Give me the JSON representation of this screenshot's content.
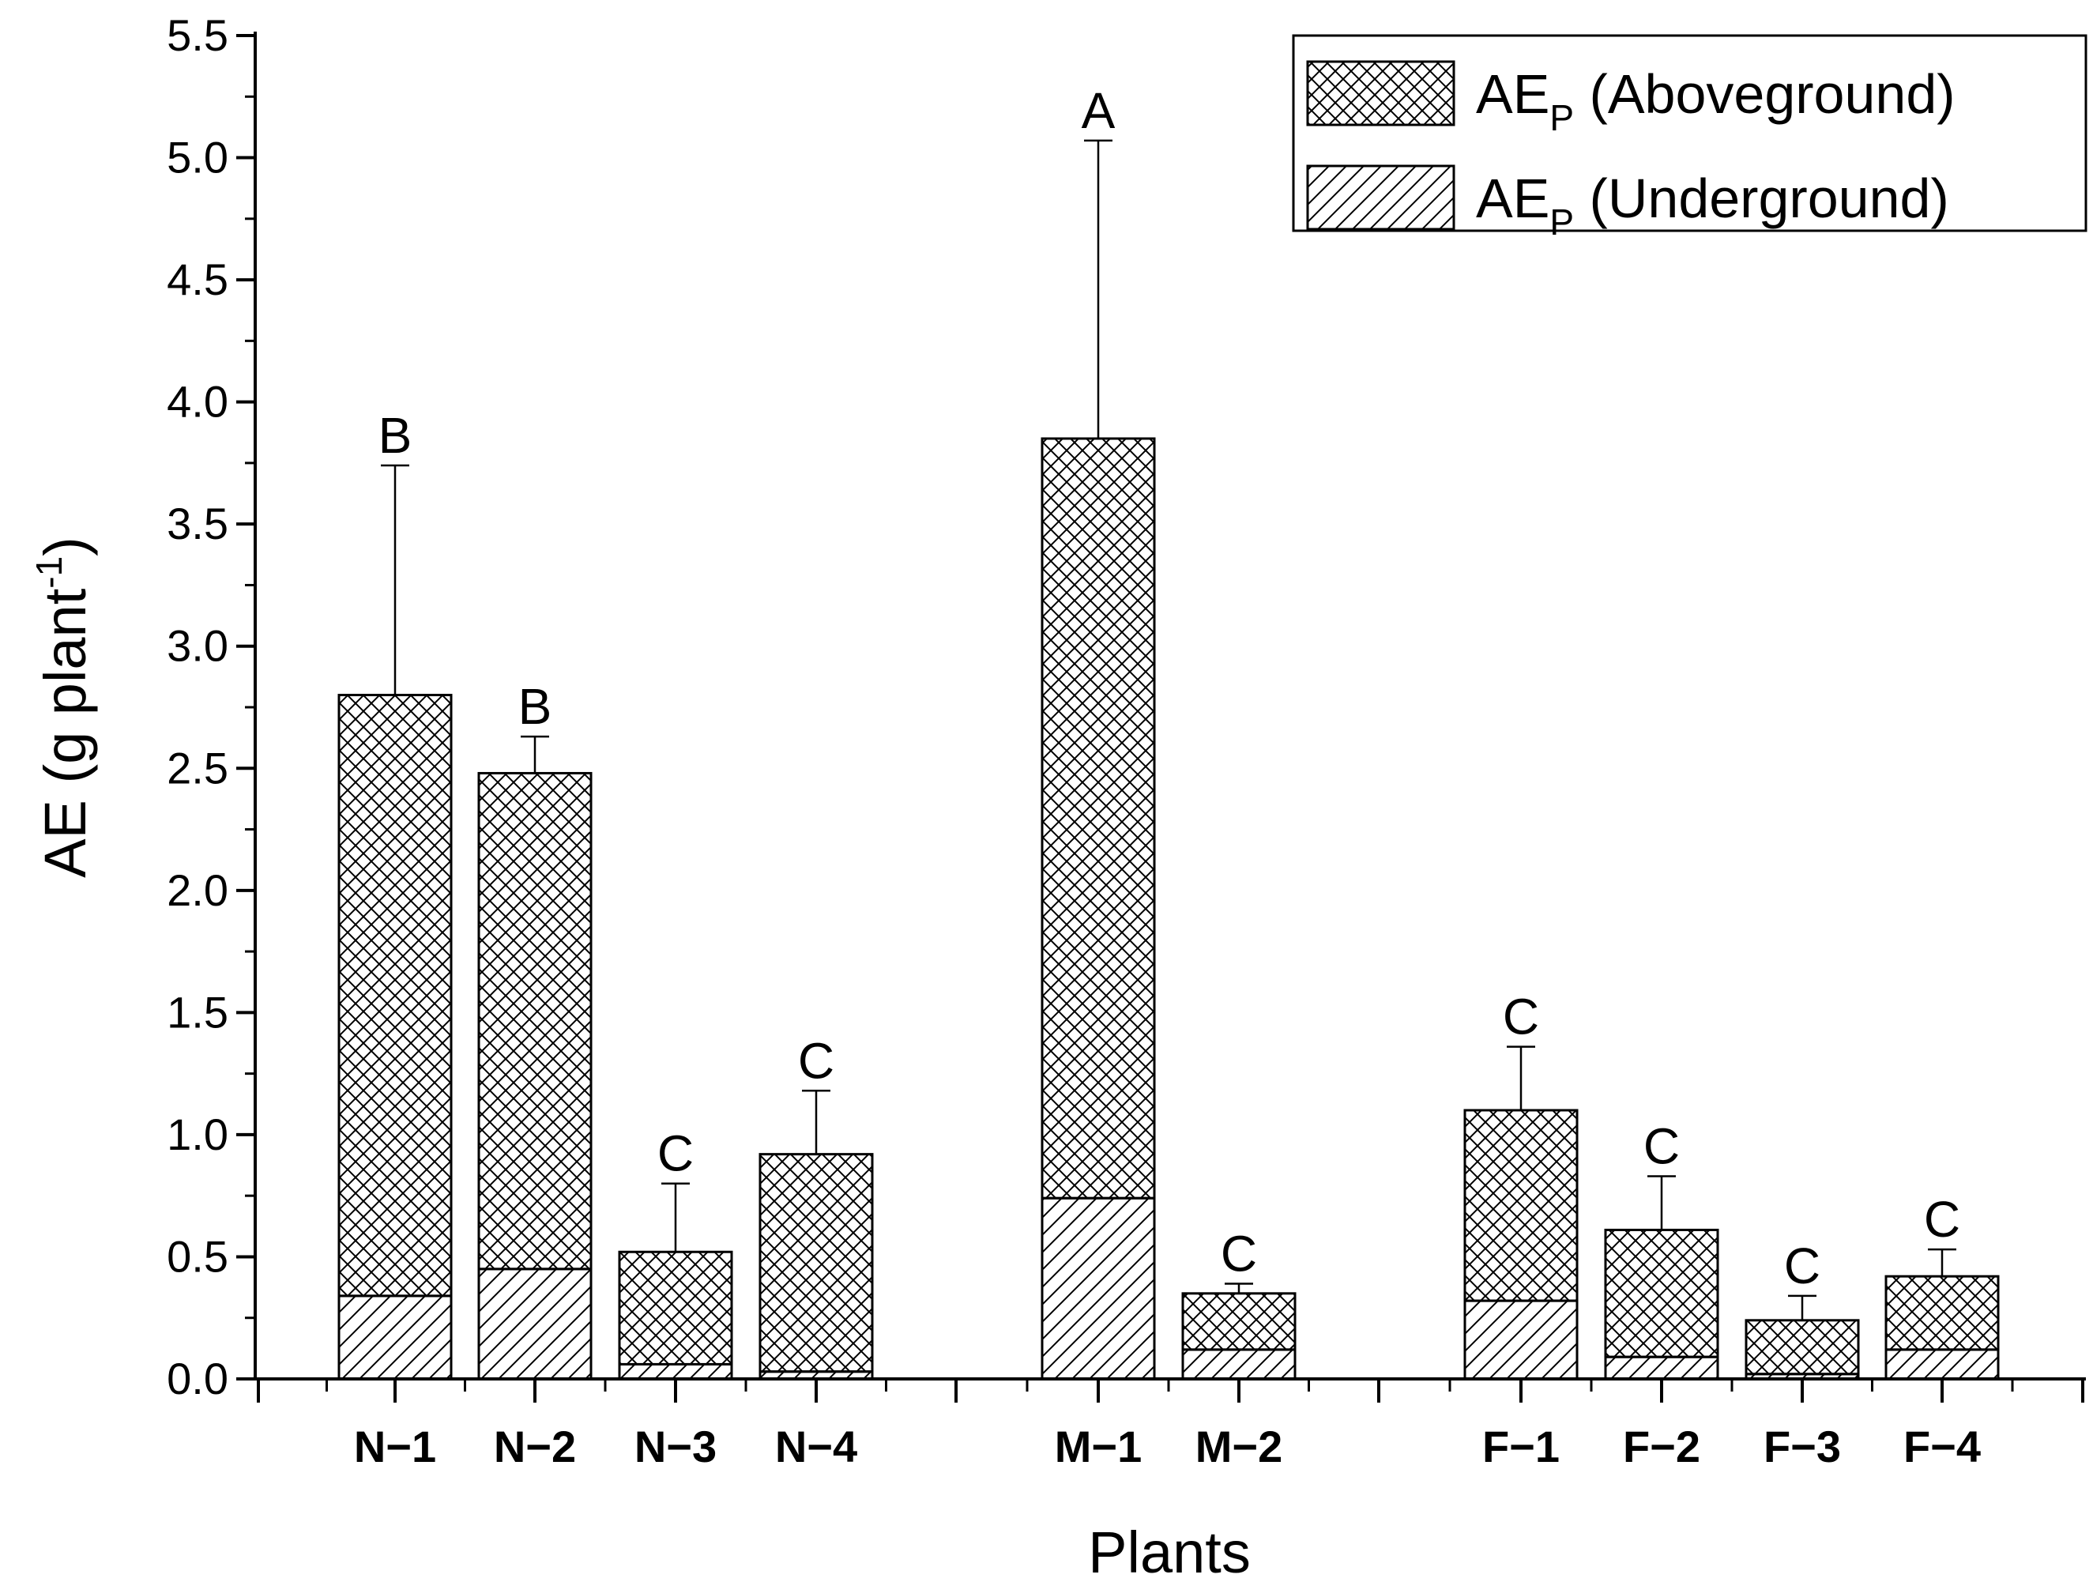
{
  "chart_data": {
    "type": "bar",
    "stacked": true,
    "categories": [
      "N−1",
      "N−2",
      "N−3",
      "N−4",
      "M−1",
      "M−2",
      "F−1",
      "F−2",
      "F−3",
      "F−4"
    ],
    "series": [
      {
        "name": "AE_P (Underground)",
        "legend_main": "AE",
        "legend_sub": "P",
        "legend_suffix": " (Underground)",
        "pattern": "diagonal-hatch",
        "values": [
          0.34,
          0.45,
          0.06,
          0.03,
          0.74,
          0.12,
          0.32,
          0.09,
          0.02,
          0.12
        ]
      },
      {
        "name": "AE_P (Aboveground)",
        "legend_main": "AE",
        "legend_sub": "P",
        "legend_suffix": " (Aboveground)",
        "pattern": "cross-hatch",
        "values": [
          2.46,
          2.03,
          0.46,
          0.89,
          3.11,
          0.23,
          0.78,
          0.52,
          0.22,
          0.3
        ]
      }
    ],
    "totals": [
      2.8,
      2.48,
      0.52,
      0.92,
      3.85,
      0.35,
      1.1,
      0.61,
      0.24,
      0.42
    ],
    "error_upper": [
      3.74,
      2.63,
      0.8,
      1.18,
      5.07,
      0.39,
      1.36,
      0.83,
      0.34,
      0.53
    ],
    "significance_letters": [
      "B",
      "B",
      "C",
      "C",
      "A",
      "C",
      "C",
      "C",
      "C",
      "C"
    ],
    "groups": [
      [
        "N−1",
        "N−2",
        "N−3",
        "N−4"
      ],
      [
        "M−1",
        "M−2"
      ],
      [
        "F−1",
        "F−2",
        "F−3",
        "F−4"
      ]
    ],
    "title": "",
    "xlabel": "Plants",
    "ylabel_main": "AE (g plant",
    "ylabel_sup": "-1",
    "ylabel_close": ")",
    "ylim": [
      0,
      5.5
    ],
    "yticks": [
      "0.0",
      "0.5",
      "1.0",
      "1.5",
      "2.0",
      "2.5",
      "3.0",
      "3.5",
      "4.0",
      "4.5",
      "5.0",
      "5.5"
    ],
    "grid": false,
    "legend_position": "top-right",
    "colors": {
      "stroke": "#000000",
      "background": "#ffffff"
    }
  }
}
